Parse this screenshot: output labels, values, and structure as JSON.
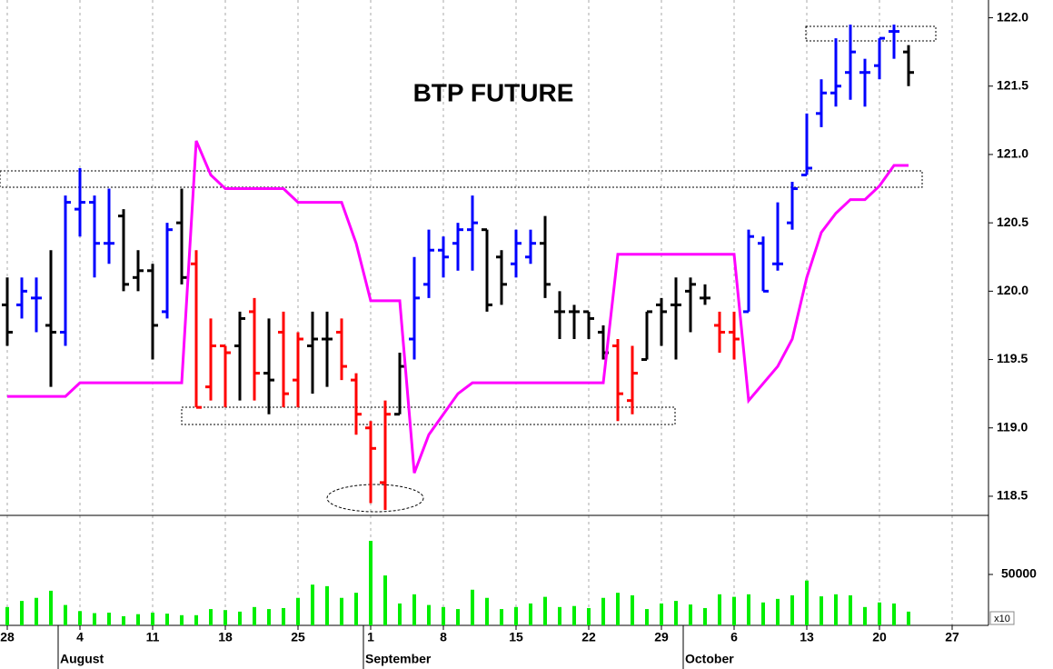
{
  "chart_data": [
    {
      "type": "ohlc",
      "title": "BTP FUTURE",
      "x": [
        0,
        1,
        2,
        3,
        4,
        5,
        6,
        7,
        8,
        9,
        10,
        11,
        12,
        13,
        14,
        15,
        16,
        17,
        18,
        19,
        20,
        21,
        22,
        23,
        24,
        25,
        26,
        27,
        28,
        29,
        30,
        31,
        32,
        33,
        34,
        35,
        36,
        37,
        38,
        39,
        40,
        41,
        42,
        43,
        44,
        45,
        46,
        47,
        48,
        49,
        50,
        51,
        52,
        53,
        54,
        55,
        56,
        57,
        58,
        59,
        60,
        61,
        62
      ],
      "open": [
        119.9,
        119.9,
        119.95,
        119.75,
        119.7,
        120.6,
        120.65,
        120.35,
        120.55,
        120.1,
        120.15,
        119.85,
        120.5,
        120.2,
        119.3,
        119.6,
        119.6,
        119.85,
        119.4,
        119.7,
        119.35,
        119.6,
        119.65,
        119.7,
        119.35,
        119.0,
        118.6,
        119.1,
        119.65,
        120.05,
        120.3,
        120.35,
        120.45,
        120.45,
        120.25,
        120.2,
        120.25,
        120.35,
        119.85,
        119.85,
        119.85,
        119.7,
        119.6,
        119.2,
        119.5,
        119.9,
        119.9,
        120.0,
        119.95,
        119.75,
        119.7,
        119.85,
        120.35,
        120.2,
        120.5,
        120.85,
        121.3,
        121.45,
        121.6,
        121.6,
        121.65,
        121.9,
        121.75
      ],
      "high": [
        120.1,
        120.1,
        120.1,
        120.3,
        120.7,
        120.9,
        120.7,
        120.75,
        120.6,
        120.3,
        120.2,
        120.5,
        120.75,
        120.3,
        119.8,
        119.6,
        119.85,
        119.95,
        119.8,
        119.85,
        119.7,
        119.85,
        119.85,
        119.8,
        119.4,
        119.05,
        119.2,
        119.55,
        120.25,
        120.45,
        120.4,
        120.5,
        120.7,
        120.45,
        120.3,
        120.45,
        120.45,
        120.55,
        120.0,
        119.9,
        119.85,
        119.75,
        119.65,
        119.6,
        119.85,
        119.95,
        120.1,
        120.1,
        120.05,
        119.85,
        119.85,
        120.45,
        120.4,
        120.65,
        120.8,
        121.3,
        121.55,
        121.85,
        121.95,
        121.7,
        121.85,
        121.95,
        121.8
      ],
      "low": [
        119.6,
        119.8,
        119.7,
        119.3,
        119.6,
        120.4,
        120.1,
        120.2,
        120.0,
        120.0,
        119.5,
        119.8,
        120.05,
        119.15,
        119.2,
        119.15,
        119.2,
        119.2,
        119.1,
        119.15,
        119.15,
        119.25,
        119.3,
        119.35,
        118.95,
        118.45,
        118.4,
        119.1,
        119.5,
        119.95,
        120.1,
        120.15,
        120.15,
        119.85,
        119.9,
        120.1,
        120.2,
        119.95,
        119.65,
        119.65,
        119.65,
        119.5,
        119.05,
        119.1,
        119.5,
        119.6,
        119.5,
        119.7,
        119.9,
        119.55,
        119.5,
        119.85,
        120.0,
        120.15,
        120.45,
        120.85,
        121.2,
        121.35,
        121.4,
        121.35,
        121.55,
        121.7,
        121.5
      ],
      "close": [
        119.7,
        120.0,
        119.95,
        119.7,
        120.65,
        120.65,
        120.35,
        120.35,
        120.05,
        120.15,
        119.75,
        120.45,
        120.1,
        119.15,
        119.6,
        119.55,
        119.8,
        119.4,
        119.35,
        119.25,
        119.65,
        119.65,
        119.65,
        119.45,
        119.1,
        118.85,
        119.1,
        119.45,
        119.95,
        120.3,
        120.25,
        120.45,
        120.5,
        119.9,
        120.05,
        120.35,
        120.35,
        120.05,
        119.85,
        119.85,
        119.8,
        119.55,
        119.25,
        119.4,
        119.85,
        119.85,
        119.9,
        120.05,
        119.95,
        119.7,
        119.65,
        120.4,
        120.0,
        120.2,
        120.75,
        120.9,
        121.45,
        121.5,
        121.75,
        121.6,
        121.85,
        121.9,
        121.6
      ],
      "colors": [
        "#000000",
        "#0000ff",
        "#0000ff",
        "#000000",
        "#0000ff",
        "#0000ff",
        "#0000ff",
        "#0000ff",
        "#000000",
        "#000000",
        "#000000",
        "#0000ff",
        "#000000",
        "#ff0000",
        "#ff0000",
        "#ff0000",
        "#000000",
        "#ff0000",
        "#000000",
        "#ff0000",
        "#ff0000",
        "#000000",
        "#000000",
        "#ff0000",
        "#ff0000",
        "#ff0000",
        "#ff0000",
        "#000000",
        "#0000ff",
        "#0000ff",
        "#0000ff",
        "#0000ff",
        "#0000ff",
        "#000000",
        "#000000",
        "#0000ff",
        "#0000ff",
        "#000000",
        "#000000",
        "#000000",
        "#000000",
        "#000000",
        "#ff0000",
        "#ff0000",
        "#000000",
        "#000000",
        "#000000",
        "#000000",
        "#000000",
        "#ff0000",
        "#ff0000",
        "#0000ff",
        "#0000ff",
        "#0000ff",
        "#0000ff",
        "#0000ff",
        "#0000ff",
        "#0000ff",
        "#0000ff",
        "#0000ff",
        "#0000ff",
        "#0000ff",
        "#000000"
      ],
      "stop_line": {
        "color": "#ff00ff",
        "x": [
          0,
          4,
          5,
          12,
          13,
          14,
          15,
          19,
          20,
          23,
          24,
          25,
          27,
          28,
          29,
          31,
          32,
          41,
          42,
          50,
          51,
          53,
          54,
          55,
          56,
          57,
          58,
          59,
          60,
          61,
          62
        ],
        "values": [
          119.23,
          119.23,
          119.33,
          119.33,
          121.1,
          120.85,
          120.75,
          120.75,
          120.65,
          120.65,
          120.35,
          119.93,
          119.93,
          118.67,
          118.95,
          119.25,
          119.33,
          119.33,
          120.27,
          120.27,
          119.2,
          119.45,
          119.65,
          120.1,
          120.43,
          120.57,
          120.67,
          120.67,
          120.77,
          120.92,
          120.92
        ]
      },
      "xlim": [
        -0.5,
        67.5
      ],
      "ylim": [
        118.36,
        122.13
      ],
      "yticks": [
        118.5,
        {
          "value": 119,
          "label": "119.0"
        },
        119.5,
        {
          "value": 120,
          "label": "120.0"
        },
        120.5,
        {
          "value": 121,
          "label": "121.0"
        },
        121.5,
        {
          "value": 122,
          "label": "122.0"
        }
      ],
      "xticks": [
        {
          "value": 0,
          "label": "28"
        },
        {
          "value": 5,
          "label": "4"
        },
        {
          "value": 10,
          "label": "11"
        },
        {
          "value": 15,
          "label": "18"
        },
        {
          "value": 20,
          "label": "25"
        },
        {
          "value": 25,
          "label": "1"
        },
        {
          "value": 30,
          "label": "8"
        },
        {
          "value": 35,
          "label": "15"
        },
        {
          "value": 40,
          "label": "22"
        },
        {
          "value": 45,
          "label": "29"
        },
        {
          "value": 50,
          "label": "6"
        },
        {
          "value": 55,
          "label": "13"
        },
        {
          "value": 60,
          "label": "20"
        },
        {
          "value": 65,
          "label": "27"
        }
      ],
      "month_ticks": [
        {
          "value": 3,
          "label": "August"
        },
        {
          "value": 24,
          "label": "September"
        },
        {
          "value": 46,
          "label": "October"
        }
      ],
      "grid": true
    },
    {
      "type": "bar",
      "scale_note": "x10",
      "x": [
        0,
        1,
        2,
        3,
        4,
        5,
        6,
        7,
        8,
        9,
        10,
        11,
        12,
        13,
        14,
        15,
        16,
        17,
        18,
        19,
        20,
        21,
        22,
        23,
        24,
        25,
        26,
        27,
        28,
        29,
        30,
        31,
        32,
        33,
        34,
        35,
        36,
        37,
        38,
        39,
        40,
        41,
        42,
        43,
        44,
        45,
        46,
        47,
        48,
        49,
        50,
        51,
        52,
        53,
        54,
        55,
        56,
        57,
        58,
        59,
        60,
        61,
        62
      ],
      "values": [
        18000,
        24000,
        27000,
        34000,
        20000,
        14000,
        12000,
        12500,
        9000,
        11000,
        12500,
        11500,
        10000,
        10000,
        16000,
        15000,
        13500,
        18000,
        16000,
        17000,
        27000,
        40000,
        38500,
        27000,
        32000,
        83000,
        49000,
        21500,
        30500,
        20000,
        18000,
        16000,
        35000,
        27000,
        16000,
        18000,
        21500,
        28000,
        18000,
        19000,
        17000,
        27000,
        32000,
        29500,
        16000,
        21500,
        24000,
        20500,
        17000,
        30500,
        28000,
        30500,
        22500,
        26000,
        29500,
        44000,
        28500,
        30500,
        29500,
        18000,
        22500,
        21500,
        13500
      ],
      "color": "#00ee00",
      "ylim": [
        0,
        108000
      ],
      "yticks": [
        50000
      ]
    }
  ]
}
